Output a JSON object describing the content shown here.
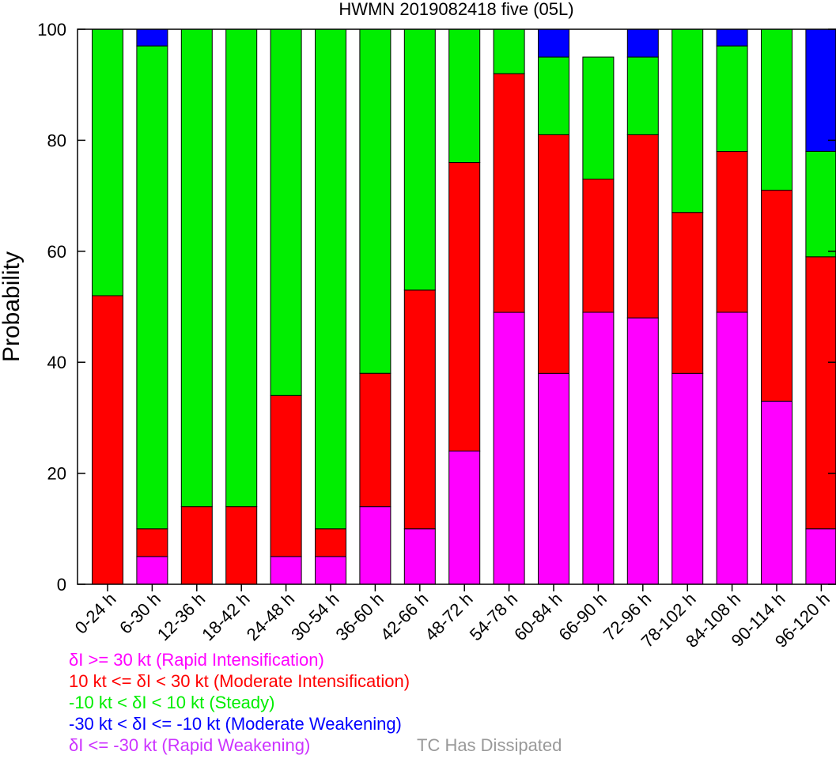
{
  "chart_data": {
    "type": "bar",
    "stacked": true,
    "title": "HWMN 2019082418 five (05L)",
    "xlabel": "",
    "ylabel": "Probability",
    "ylim": [
      0,
      100
    ],
    "yticks": [
      0,
      20,
      40,
      60,
      80,
      100
    ],
    "grid": false,
    "categories": [
      "0-24 h",
      "6-30 h",
      "12-36 h",
      "18-42 h",
      "24-48 h",
      "30-54 h",
      "36-60 h",
      "42-66 h",
      "48-72 h",
      "54-78 h",
      "60-84 h",
      "66-90 h",
      "72-96 h",
      "78-102 h",
      "84-108 h",
      "90-114 h",
      "96-120 h"
    ],
    "series": [
      {
        "key": "ri",
        "color": "#ff00ff",
        "values": [
          0,
          5,
          0,
          0,
          5,
          5,
          14,
          10,
          24,
          49,
          38,
          49,
          48,
          38,
          49,
          33,
          10
        ]
      },
      {
        "key": "mi",
        "color": "#ff0000",
        "values": [
          52,
          5,
          14,
          14,
          29,
          5,
          24,
          43,
          52,
          43,
          43,
          24,
          33,
          29,
          29,
          38,
          49
        ]
      },
      {
        "key": "st",
        "color": "#00ee00",
        "values": [
          48,
          87,
          86,
          86,
          66,
          90,
          62,
          47,
          24,
          8,
          14,
          22,
          14,
          33,
          19,
          29,
          19
        ]
      },
      {
        "key": "mw",
        "color": "#0000ff",
        "values": [
          0,
          3,
          0,
          0,
          0,
          0,
          0,
          0,
          0,
          0,
          5,
          0,
          5,
          0,
          3,
          0,
          22
        ]
      },
      {
        "key": "rw",
        "color": "#cc33ff",
        "values": [
          0,
          0,
          0,
          0,
          0,
          0,
          0,
          0,
          0,
          0,
          0,
          0,
          0,
          0,
          0,
          0,
          0
        ]
      }
    ],
    "legend_position": "bottom-left"
  },
  "legend": {
    "ri": {
      "text": "δI >= 30 kt (Rapid Intensification)",
      "color": "#ff00ff"
    },
    "mi": {
      "text": "10 kt <= δI < 30 kt (Moderate Intensification)",
      "color": "#ff0000"
    },
    "st": {
      "text": "-10 kt < δI < 10 kt (Steady)",
      "color": "#00ee00"
    },
    "mw": {
      "text": "-30 kt < δI <= -10 kt (Moderate Weakening)",
      "color": "#0000ff"
    },
    "rw": {
      "text": "δI <= -30 kt (Rapid Weakening)",
      "color": "#cc33ff"
    },
    "dissipated": {
      "text": "TC Has Dissipated",
      "color": "#999999"
    }
  }
}
